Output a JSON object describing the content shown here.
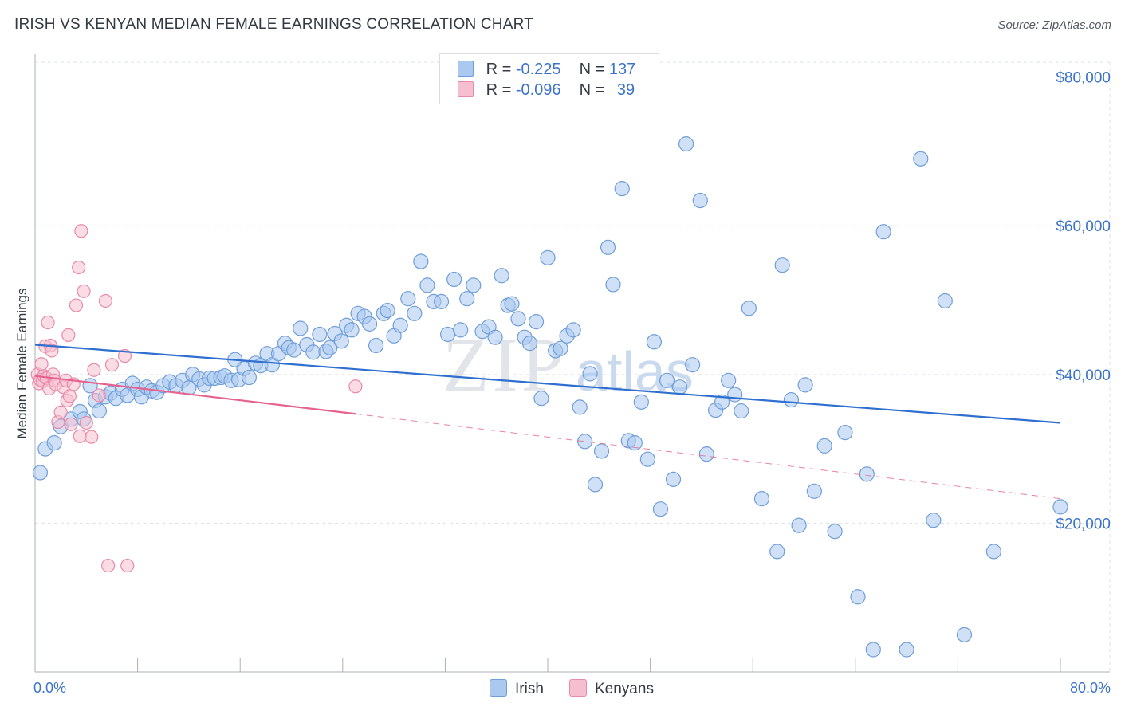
{
  "header": {
    "title": "IRISH VS KENYAN MEDIAN FEMALE EARNINGS CORRELATION CHART",
    "source": "Source: ZipAtlas.com"
  },
  "legend": {
    "rows": [
      {
        "r_label": "R =",
        "r_value": "-0.225",
        "n_label": "N =",
        "n_value": "137"
      },
      {
        "r_label": "R =",
        "r_value": "-0.096",
        "n_label": "N =",
        "n_value": "39"
      }
    ]
  },
  "watermark": {
    "zip": "ZIP",
    "atlas": "atlas"
  },
  "colors": {
    "irish_fill": "#aac8f0",
    "irish_stroke": "#6f9ed8",
    "irish_line": "#2e6fcf",
    "kenyan_fill": "#f6bfd0",
    "kenyan_stroke": "#e98aa8",
    "kenyan_line": "#e5628f",
    "axis_text": "#3b73c8",
    "grid": "#dde3ea"
  },
  "chart_data": {
    "type": "scatter",
    "title": "IRISH VS KENYAN MEDIAN FEMALE EARNINGS CORRELATION CHART",
    "xlabel": "",
    "ylabel": "Median Female Earnings",
    "xlim": [
      0,
      80
    ],
    "ylim": [
      0,
      82000
    ],
    "x_tick_labels": [
      {
        "value": 0,
        "label": "0.0%"
      },
      {
        "value": 80,
        "label": "80.0%"
      }
    ],
    "y_tick_labels": [
      {
        "value": 20000,
        "label": "$20,000"
      },
      {
        "value": 40000,
        "label": "$40,000"
      },
      {
        "value": 60000,
        "label": "$60,000"
      },
      {
        "value": 80000,
        "label": "$80,000"
      }
    ],
    "grid": "horizontal dashed",
    "legend_position": "top-center",
    "series": [
      {
        "name": "Irish",
        "r": -0.225,
        "n": 137,
        "trend": {
          "x0": 0,
          "y0": 44000,
          "x1": 80,
          "y1": 33500
        },
        "points": [
          [
            0.4,
            26800
          ],
          [
            0.8,
            30000
          ],
          [
            1.5,
            30800
          ],
          [
            2.0,
            33000
          ],
          [
            2.8,
            34000
          ],
          [
            3.5,
            35000
          ],
          [
            3.8,
            34000
          ],
          [
            4.3,
            38500
          ],
          [
            4.7,
            36500
          ],
          [
            5.0,
            35100
          ],
          [
            5.5,
            37000
          ],
          [
            5.9,
            37500
          ],
          [
            6.3,
            36800
          ],
          [
            6.8,
            38000
          ],
          [
            7.2,
            37200
          ],
          [
            7.6,
            38800
          ],
          [
            8.0,
            38000
          ],
          [
            8.3,
            37000
          ],
          [
            8.7,
            38300
          ],
          [
            9.1,
            37800
          ],
          [
            9.5,
            37600
          ],
          [
            10.0,
            38500
          ],
          [
            10.5,
            39000
          ],
          [
            11.0,
            38500
          ],
          [
            11.5,
            39200
          ],
          [
            12.0,
            38200
          ],
          [
            12.3,
            40000
          ],
          [
            12.8,
            39400
          ],
          [
            13.2,
            38600
          ],
          [
            13.6,
            39500
          ],
          [
            14.0,
            39500
          ],
          [
            14.5,
            39600
          ],
          [
            14.8,
            39800
          ],
          [
            15.3,
            39200
          ],
          [
            15.6,
            42000
          ],
          [
            15.9,
            39300
          ],
          [
            16.3,
            40800
          ],
          [
            16.7,
            39600
          ],
          [
            17.2,
            41500
          ],
          [
            17.6,
            41200
          ],
          [
            18.1,
            42800
          ],
          [
            18.5,
            41300
          ],
          [
            19.0,
            42800
          ],
          [
            19.5,
            44200
          ],
          [
            19.8,
            43600
          ],
          [
            20.2,
            43300
          ],
          [
            20.7,
            46200
          ],
          [
            21.2,
            44000
          ],
          [
            21.7,
            43000
          ],
          [
            22.2,
            45400
          ],
          [
            22.7,
            43100
          ],
          [
            23.0,
            43600
          ],
          [
            23.4,
            45500
          ],
          [
            23.9,
            44500
          ],
          [
            24.3,
            46600
          ],
          [
            24.7,
            46000
          ],
          [
            25.2,
            48200
          ],
          [
            25.7,
            47800
          ],
          [
            26.1,
            46800
          ],
          [
            26.6,
            43900
          ],
          [
            27.2,
            48200
          ],
          [
            27.5,
            48600
          ],
          [
            28.0,
            45200
          ],
          [
            28.5,
            46600
          ],
          [
            29.1,
            50200
          ],
          [
            29.6,
            48200
          ],
          [
            30.1,
            55200
          ],
          [
            30.6,
            52000
          ],
          [
            31.1,
            49800
          ],
          [
            31.7,
            49800
          ],
          [
            32.2,
            45400
          ],
          [
            32.7,
            52800
          ],
          [
            33.2,
            46000
          ],
          [
            33.7,
            50200
          ],
          [
            34.2,
            52000
          ],
          [
            34.9,
            45800
          ],
          [
            35.4,
            46400
          ],
          [
            35.9,
            45000
          ],
          [
            36.4,
            53300
          ],
          [
            36.9,
            49300
          ],
          [
            37.2,
            49500
          ],
          [
            37.7,
            47500
          ],
          [
            38.2,
            45000
          ],
          [
            38.6,
            44200
          ],
          [
            39.1,
            47100
          ],
          [
            39.5,
            36800
          ],
          [
            40.0,
            55700
          ],
          [
            40.6,
            43200
          ],
          [
            41.0,
            43500
          ],
          [
            41.5,
            45200
          ],
          [
            42.0,
            46000
          ],
          [
            42.5,
            35600
          ],
          [
            42.9,
            31000
          ],
          [
            43.3,
            40100
          ],
          [
            43.7,
            25200
          ],
          [
            44.2,
            29700
          ],
          [
            44.7,
            57100
          ],
          [
            45.1,
            52100
          ],
          [
            45.8,
            65000
          ],
          [
            46.3,
            31100
          ],
          [
            46.8,
            30800
          ],
          [
            47.3,
            36300
          ],
          [
            47.8,
            28600
          ],
          [
            48.3,
            44400
          ],
          [
            48.8,
            21900
          ],
          [
            49.3,
            39200
          ],
          [
            49.8,
            25900
          ],
          [
            50.3,
            38300
          ],
          [
            50.8,
            71000
          ],
          [
            51.3,
            41300
          ],
          [
            51.9,
            63400
          ],
          [
            52.4,
            29300
          ],
          [
            53.1,
            35200
          ],
          [
            53.6,
            36300
          ],
          [
            54.1,
            39200
          ],
          [
            54.6,
            37300
          ],
          [
            55.1,
            35100
          ],
          [
            55.7,
            48900
          ],
          [
            56.7,
            23300
          ],
          [
            57.9,
            16200
          ],
          [
            58.3,
            54700
          ],
          [
            59.0,
            36600
          ],
          [
            59.6,
            19700
          ],
          [
            60.1,
            38600
          ],
          [
            60.8,
            24300
          ],
          [
            61.6,
            30400
          ],
          [
            62.4,
            18900
          ],
          [
            63.2,
            32200
          ],
          [
            64.2,
            10100
          ],
          [
            64.9,
            26600
          ],
          [
            65.4,
            3000
          ],
          [
            66.2,
            59200
          ],
          [
            68.0,
            3000
          ],
          [
            69.1,
            69000
          ],
          [
            70.1,
            20400
          ],
          [
            71.0,
            49900
          ],
          [
            72.5,
            5000
          ],
          [
            74.8,
            16200
          ],
          [
            80.0,
            22200
          ]
        ]
      },
      {
        "name": "Kenyans",
        "r": -0.096,
        "n": 39,
        "trend": {
          "x0": 0,
          "y0": 39800,
          "x1": 25,
          "y1": 34700
        },
        "trend_extrapolated": {
          "x0": 25,
          "y0": 34700,
          "x1": 80,
          "y1": 23300
        },
        "points": [
          [
            0.2,
            40000
          ],
          [
            0.3,
            38800
          ],
          [
            0.4,
            39300
          ],
          [
            0.5,
            41400
          ],
          [
            0.6,
            39100
          ],
          [
            0.7,
            39800
          ],
          [
            0.8,
            43800
          ],
          [
            0.9,
            39500
          ],
          [
            1.0,
            47000
          ],
          [
            1.1,
            38100
          ],
          [
            1.2,
            43900
          ],
          [
            1.3,
            43200
          ],
          [
            1.4,
            40000
          ],
          [
            1.5,
            39200
          ],
          [
            1.6,
            38700
          ],
          [
            1.8,
            33600
          ],
          [
            2.0,
            34900
          ],
          [
            2.2,
            38300
          ],
          [
            2.4,
            39200
          ],
          [
            2.5,
            36500
          ],
          [
            2.6,
            45300
          ],
          [
            2.7,
            37100
          ],
          [
            2.8,
            33300
          ],
          [
            3.0,
            38700
          ],
          [
            3.2,
            49300
          ],
          [
            3.4,
            54400
          ],
          [
            3.5,
            31700
          ],
          [
            3.6,
            59300
          ],
          [
            3.8,
            51200
          ],
          [
            4.0,
            33500
          ],
          [
            4.4,
            31600
          ],
          [
            4.6,
            40600
          ],
          [
            5.0,
            37200
          ],
          [
            5.5,
            49900
          ],
          [
            5.7,
            14300
          ],
          [
            6.0,
            41300
          ],
          [
            7.0,
            42500
          ],
          [
            7.2,
            14300
          ],
          [
            25.0,
            38400
          ]
        ]
      }
    ]
  }
}
